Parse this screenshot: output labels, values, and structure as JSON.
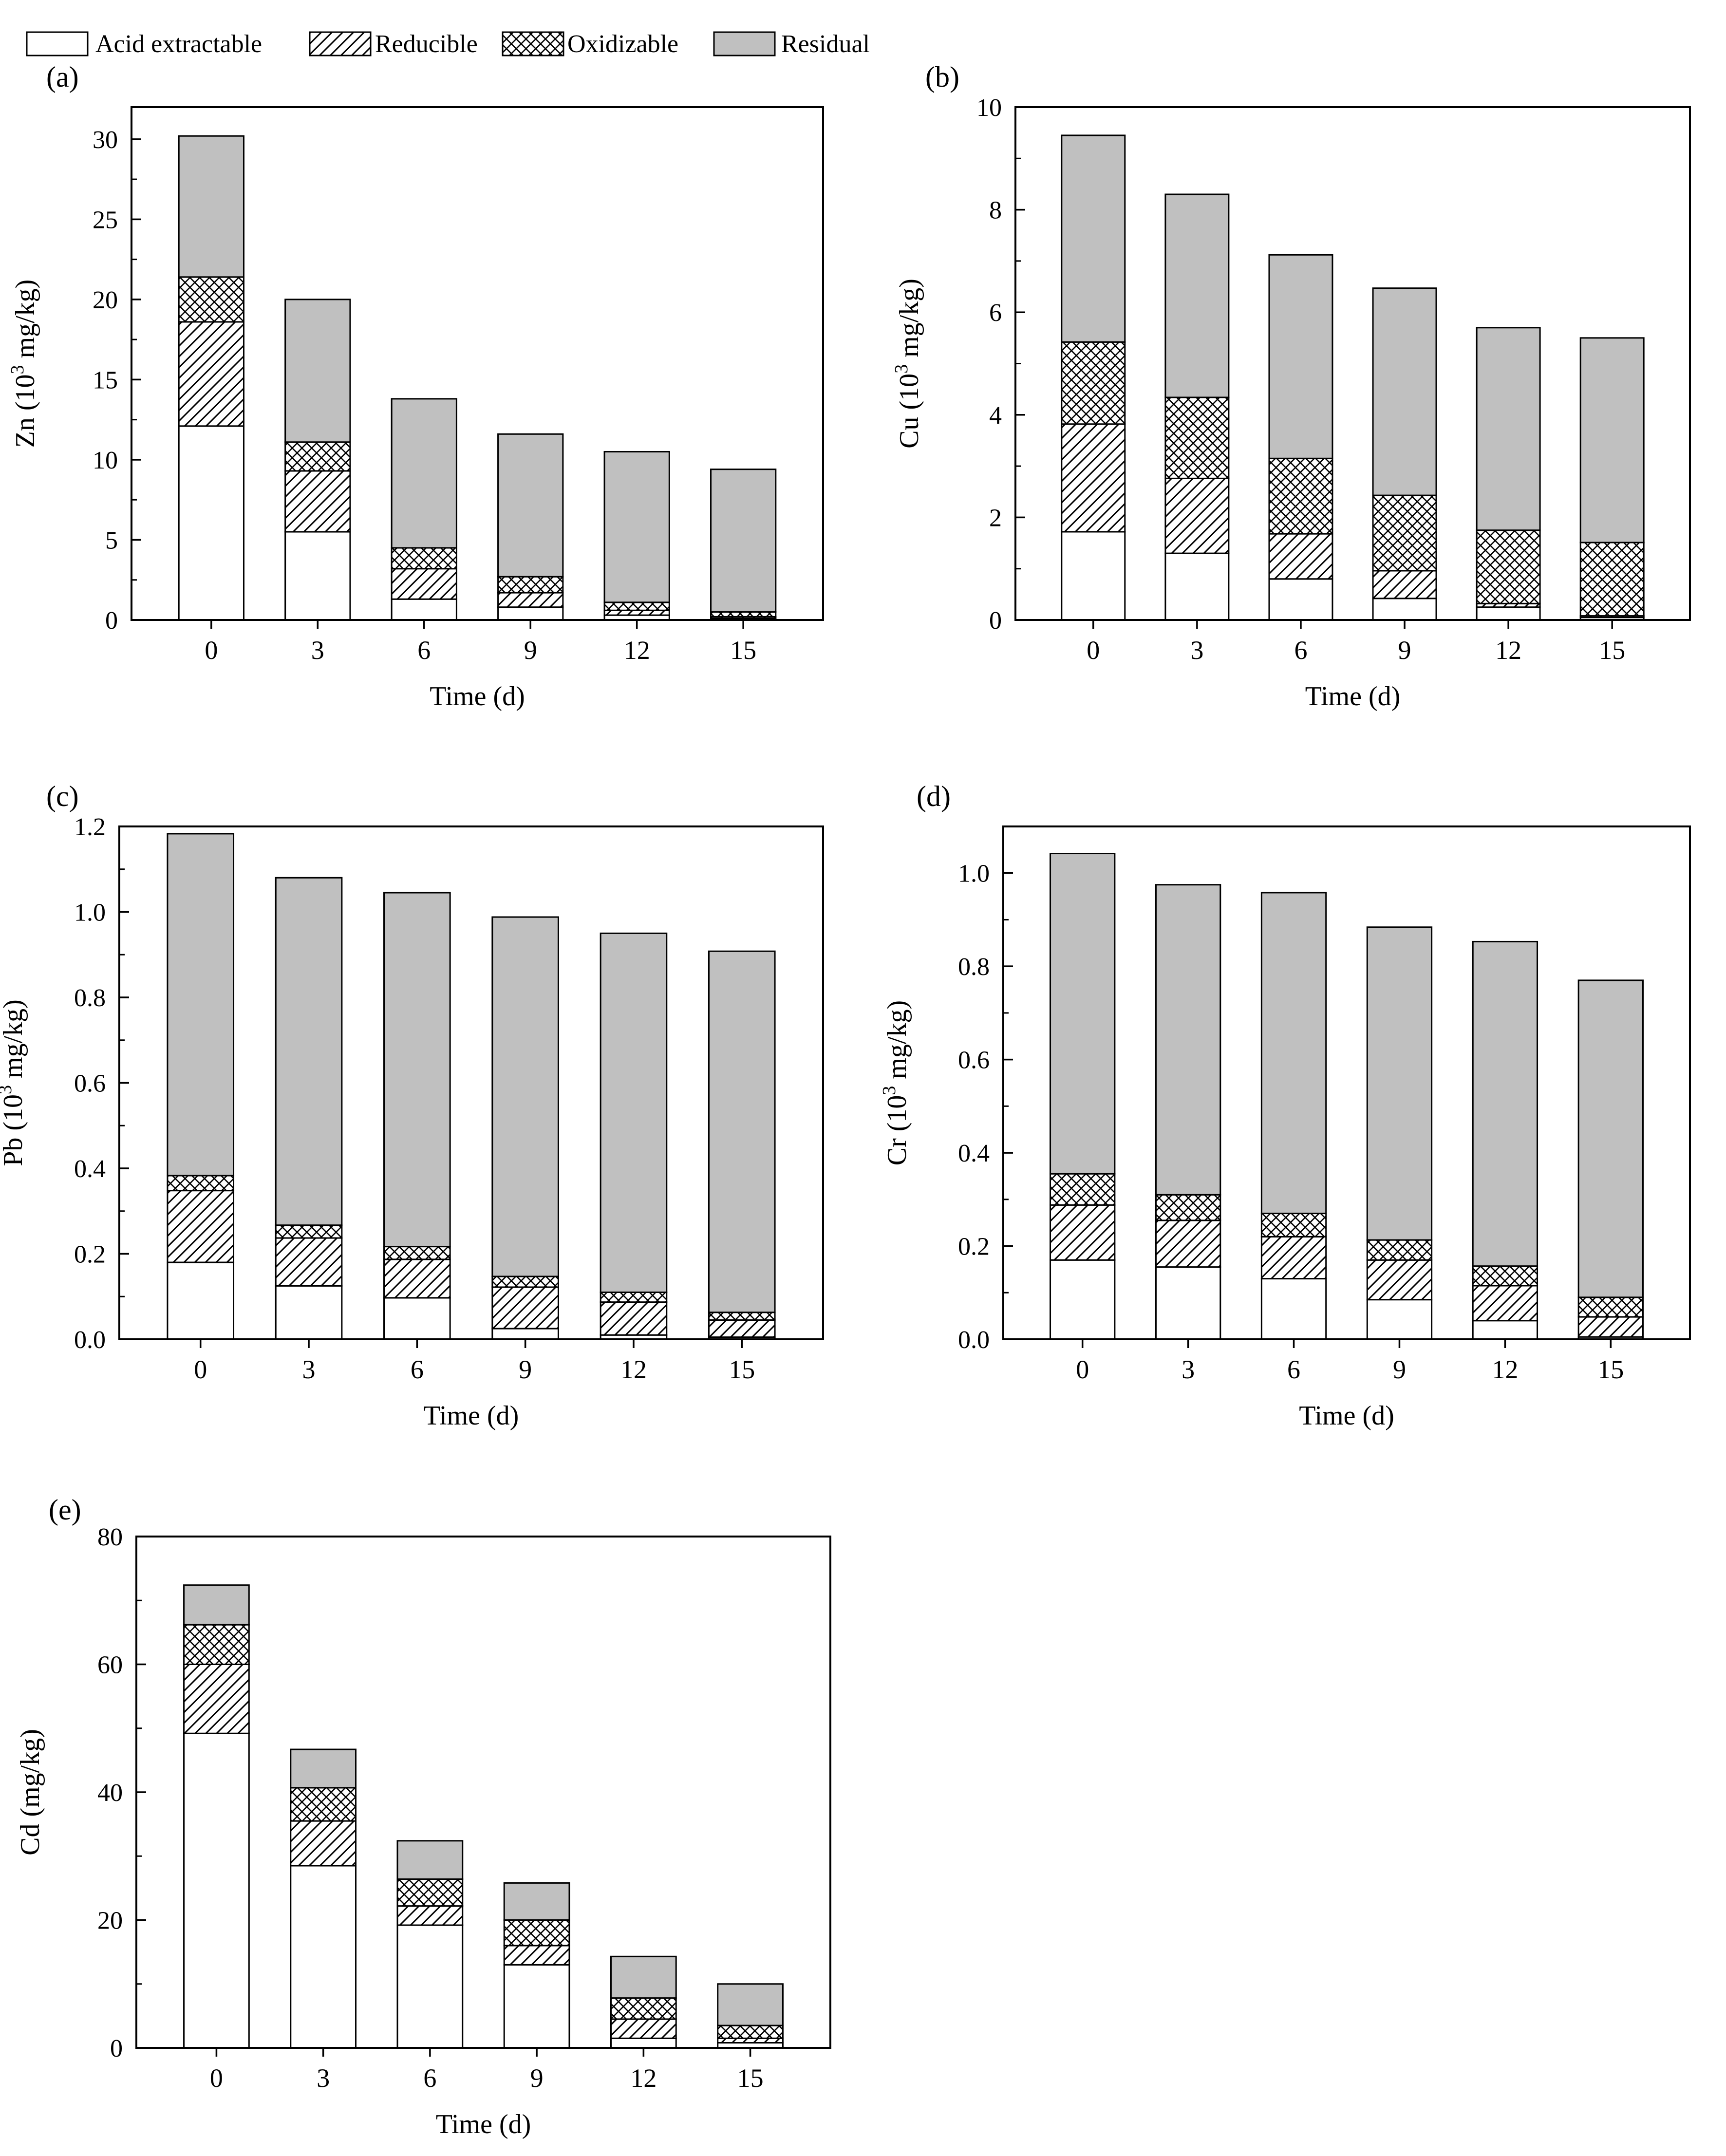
{
  "legend": {
    "entries": [
      {
        "name": "Acid extractable",
        "pattern": "acid"
      },
      {
        "name": "Reducible",
        "pattern": "reducible"
      },
      {
        "name": "Oxidizable",
        "pattern": "oxidizable"
      },
      {
        "name": "Residual",
        "pattern": "residual"
      }
    ]
  },
  "colors": {
    "residual": "#c0c0c0",
    "acid": "#ffffff",
    "stroke": "#000000"
  },
  "chart_data": [
    {
      "id": "a",
      "panel_label": "(a)",
      "type": "bar",
      "stacked": true,
      "xlabel": "Time (d)",
      "ylabel_main": "Zn (10",
      "ylabel_sup": "3",
      "ylabel_tail": " mg/kg)",
      "categories": [
        "0",
        "3",
        "6",
        "9",
        "12",
        "15"
      ],
      "ylim": [
        0,
        32
      ],
      "yticks": [
        0,
        5,
        10,
        15,
        20,
        25,
        30
      ],
      "ytick_labels": [
        "0",
        "5",
        "10",
        "15",
        "20",
        "25",
        "30"
      ],
      "series": [
        {
          "name": "Acid extractable",
          "values": [
            12.1,
            5.5,
            1.3,
            0.8,
            0.3,
            0.1
          ]
        },
        {
          "name": "Reducible",
          "values": [
            6.5,
            3.8,
            1.9,
            0.9,
            0.3,
            0.1
          ]
        },
        {
          "name": "Oxidizable",
          "values": [
            2.8,
            1.8,
            1.3,
            1.0,
            0.5,
            0.3
          ]
        },
        {
          "name": "Residual",
          "values": [
            8.8,
            8.9,
            9.3,
            8.9,
            9.4,
            8.9
          ]
        }
      ]
    },
    {
      "id": "b",
      "panel_label": "(b)",
      "type": "bar",
      "stacked": true,
      "xlabel": "Time (d)",
      "ylabel_main": "Cu (10",
      "ylabel_sup": "3",
      "ylabel_tail": " mg/kg)",
      "categories": [
        "0",
        "3",
        "6",
        "9",
        "12",
        "15"
      ],
      "ylim": [
        0,
        10
      ],
      "yticks": [
        0,
        2,
        4,
        6,
        8,
        10
      ],
      "ytick_labels": [
        "0",
        "2",
        "4",
        "6",
        "8",
        "10"
      ],
      "series": [
        {
          "name": "Acid extractable",
          "values": [
            1.72,
            1.3,
            0.8,
            0.42,
            0.25,
            0.05
          ]
        },
        {
          "name": "Reducible",
          "values": [
            2.1,
            1.46,
            0.88,
            0.54,
            0.07,
            0.03
          ]
        },
        {
          "name": "Oxidizable",
          "values": [
            1.6,
            1.58,
            1.47,
            1.47,
            1.43,
            1.43
          ]
        },
        {
          "name": "Residual",
          "values": [
            4.03,
            3.96,
            3.97,
            4.04,
            3.95,
            3.99
          ]
        }
      ]
    },
    {
      "id": "c",
      "panel_label": "(c)",
      "type": "bar",
      "stacked": true,
      "xlabel": "Time (d)",
      "ylabel_main": "Pb (10",
      "ylabel_sup": "3",
      "ylabel_tail": " mg/kg)",
      "categories": [
        "0",
        "3",
        "6",
        "9",
        "12",
        "15"
      ],
      "ylim": [
        0,
        1.2
      ],
      "yticks": [
        0,
        0.2,
        0.4,
        0.6,
        0.8,
        1.0,
        1.2
      ],
      "ytick_labels": [
        "0.0",
        "0.2",
        "0.4",
        "0.6",
        "0.8",
        "1.0",
        "1.2"
      ],
      "series": [
        {
          "name": "Acid extractable",
          "values": [
            0.18,
            0.125,
            0.097,
            0.025,
            0.01,
            0.005
          ]
        },
        {
          "name": "Reducible",
          "values": [
            0.168,
            0.112,
            0.09,
            0.097,
            0.077,
            0.04
          ]
        },
        {
          "name": "Oxidizable",
          "values": [
            0.035,
            0.03,
            0.03,
            0.025,
            0.023,
            0.018
          ]
        },
        {
          "name": "Residual",
          "values": [
            0.8,
            0.813,
            0.828,
            0.841,
            0.84,
            0.845
          ]
        }
      ]
    },
    {
      "id": "d",
      "panel_label": "(d)",
      "type": "bar",
      "stacked": true,
      "xlabel": "Time (d)",
      "ylabel_main": "Cr (10",
      "ylabel_sup": "3",
      "ylabel_tail": " mg/kg)",
      "categories": [
        "0",
        "3",
        "6",
        "9",
        "12",
        "15"
      ],
      "ylim": [
        0,
        1.1
      ],
      "yticks": [
        0,
        0.2,
        0.4,
        0.6,
        0.8,
        1.0
      ],
      "ytick_labels": [
        "0.0",
        "0.2",
        "0.4",
        "0.6",
        "0.8",
        "1.0"
      ],
      "series": [
        {
          "name": "Acid extractable",
          "values": [
            0.17,
            0.155,
            0.13,
            0.085,
            0.04,
            0.005
          ]
        },
        {
          "name": "Reducible",
          "values": [
            0.118,
            0.1,
            0.09,
            0.085,
            0.075,
            0.043
          ]
        },
        {
          "name": "Oxidizable",
          "values": [
            0.067,
            0.055,
            0.05,
            0.043,
            0.042,
            0.042
          ]
        },
        {
          "name": "Residual",
          "values": [
            0.687,
            0.665,
            0.688,
            0.671,
            0.696,
            0.68
          ]
        }
      ]
    },
    {
      "id": "e",
      "panel_label": "(e)",
      "type": "bar",
      "stacked": true,
      "xlabel": "Time (d)",
      "ylabel_main": "Cd (mg/kg)",
      "ylabel_sup": "",
      "ylabel_tail": "",
      "categories": [
        "0",
        "3",
        "6",
        "9",
        "12",
        "15"
      ],
      "ylim": [
        0,
        80
      ],
      "yticks": [
        0,
        20,
        40,
        60,
        80
      ],
      "ytick_labels": [
        "0",
        "20",
        "40",
        "60",
        "80"
      ],
      "series": [
        {
          "name": "Acid extractable",
          "values": [
            49.2,
            28.5,
            19.2,
            13.0,
            1.5,
            0.8
          ]
        },
        {
          "name": "Reducible",
          "values": [
            10.8,
            7.0,
            3.0,
            3.0,
            3.0,
            0.7
          ]
        },
        {
          "name": "Oxidizable",
          "values": [
            6.2,
            5.2,
            4.2,
            4.0,
            3.3,
            2.0
          ]
        },
        {
          "name": "Residual",
          "values": [
            6.2,
            6.0,
            6.0,
            5.8,
            6.5,
            6.5
          ]
        }
      ]
    }
  ]
}
